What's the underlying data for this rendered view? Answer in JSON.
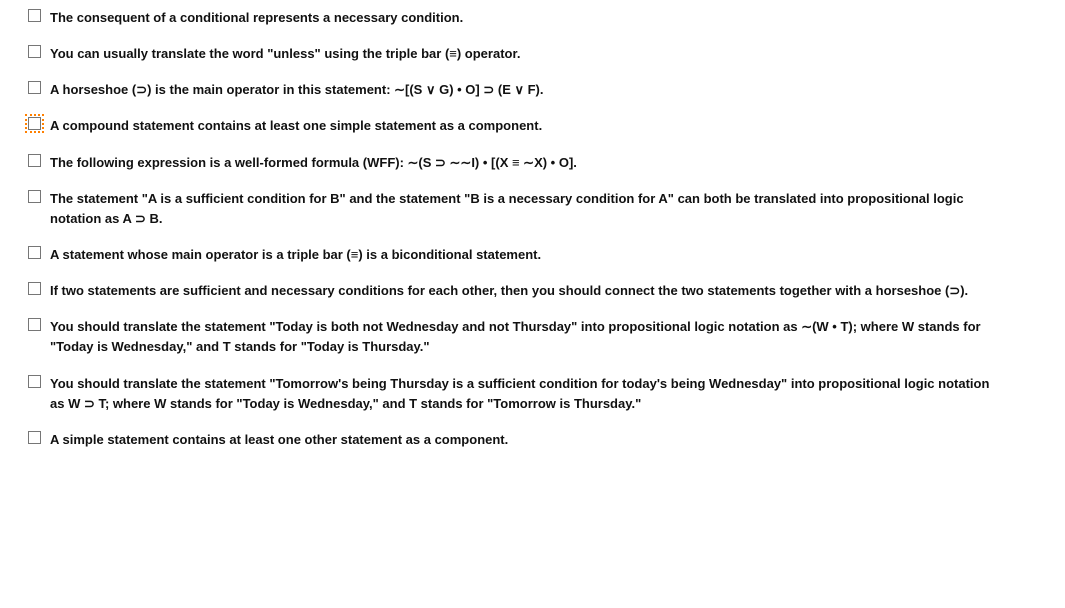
{
  "items": [
    {
      "label": "The consequent of a conditional represents a necessary condition.",
      "focused": false
    },
    {
      "label": "You can usually translate the word \"unless\" using the triple bar (≡) operator.",
      "focused": false
    },
    {
      "label": "A horseshoe (⊃) is the main operator in this statement: ∼[(S ∨ G) • O] ⊃ (E ∨ F).",
      "focused": false
    },
    {
      "label": "A compound statement contains at least one simple statement as a component.",
      "focused": true
    },
    {
      "label": "The following expression is a well-formed formula (WFF): ∼(S ⊃ ∼∼I) • [(X ≡ ∼X) • O].",
      "focused": false
    },
    {
      "label": "The statement \"A is a sufficient condition for B\" and the statement \"B is a necessary condition for A\" can both be translated into propositional logic notation as A ⊃ B.",
      "focused": false
    },
    {
      "label": "A statement whose main operator is a triple bar (≡) is a biconditional statement.",
      "focused": false
    },
    {
      "label": "If two statements are sufficient and necessary conditions for each other, then you should connect the two statements together with a horseshoe (⊃).",
      "focused": false
    },
    {
      "label": "You should translate the statement \"Today is both not Wednesday and not Thursday\" into propositional logic notation as ∼(W • T); where W stands for \"Today is Wednesday,\" and T stands for \"Today is Thursday.\"",
      "focused": false
    },
    {
      "label": "You should translate the statement \"Tomorrow's being Thursday is a sufficient condition for today's being Wednesday\" into propositional logic notation as W ⊃ T; where W stands for \"Today is Wednesday,\" and T stands for \"Tomorrow is Thursday.\"",
      "focused": false
    },
    {
      "label": "A simple statement contains at least one other statement as a component.",
      "focused": false
    }
  ]
}
